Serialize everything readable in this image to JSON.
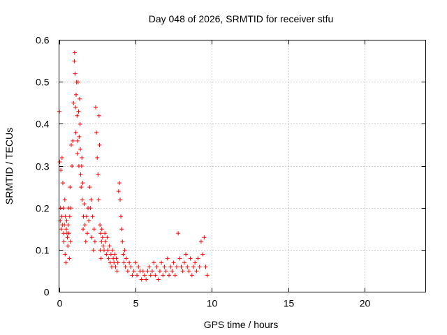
{
  "chart_data": {
    "type": "scatter",
    "title": "Day 048 of 2026, SRMTID for receiver stfu",
    "xlabel": "GPS time / hours",
    "ylabel": "SRMTID / TECUs",
    "xlim": [
      0,
      24
    ],
    "ylim": [
      0,
      0.6
    ],
    "x_ticks": [
      0,
      5,
      10,
      15,
      20
    ],
    "x_tick_labels": [
      "0",
      "5",
      "10",
      "15",
      "20"
    ],
    "y_ticks": [
      0,
      0.1,
      0.2,
      0.3,
      0.4,
      0.5,
      0.6
    ],
    "y_tick_labels": [
      "0",
      "0.1",
      "0.2",
      "0.3",
      "0.4",
      "0.5",
      "0.6"
    ],
    "grid": true,
    "marker": "+",
    "series": [
      {
        "name": "SRMTID",
        "color": "#ff0000",
        "x": [
          0.02,
          0.05,
          0.08,
          0.1,
          0.12,
          0.15,
          0.18,
          0.2,
          0.22,
          0.25,
          0.28,
          0.3,
          0.32,
          0.35,
          0.38,
          0.4,
          0.42,
          0.45,
          0.48,
          0.5,
          0.52,
          0.55,
          0.58,
          0.6,
          0.62,
          0.65,
          0.68,
          0.7,
          0.72,
          0.75,
          0.78,
          0.8,
          0.85,
          0.9,
          0.95,
          1.0,
          1.02,
          1.05,
          1.08,
          1.1,
          1.12,
          1.15,
          1.18,
          1.2,
          1.22,
          1.25,
          1.28,
          1.3,
          1.32,
          1.35,
          1.38,
          1.4,
          1.42,
          1.45,
          1.48,
          1.5,
          1.52,
          1.55,
          1.58,
          1.6,
          1.65,
          1.7,
          1.75,
          1.8,
          1.85,
          1.9,
          1.95,
          2.0,
          2.05,
          2.1,
          2.15,
          2.2,
          2.25,
          2.3,
          2.35,
          2.4,
          2.45,
          2.5,
          2.55,
          2.6,
          2.62,
          2.65,
          2.68,
          2.7,
          2.72,
          2.75,
          2.78,
          2.8,
          2.85,
          2.9,
          2.95,
          3.0,
          3.05,
          3.1,
          3.15,
          3.2,
          3.25,
          3.3,
          3.35,
          3.4,
          3.45,
          3.5,
          3.55,
          3.6,
          3.65,
          3.7,
          3.75,
          3.8,
          3.85,
          3.9,
          3.95,
          4.0,
          4.05,
          4.1,
          4.15,
          4.2,
          4.25,
          4.3,
          4.35,
          4.4,
          4.5,
          4.6,
          4.7,
          4.8,
          4.9,
          5.0,
          5.1,
          5.2,
          5.3,
          5.4,
          5.5,
          5.6,
          5.7,
          5.8,
          5.9,
          6.0,
          6.1,
          6.2,
          6.3,
          6.4,
          6.5,
          6.6,
          6.7,
          6.8,
          6.9,
          7.0,
          7.1,
          7.2,
          7.3,
          7.4,
          7.5,
          7.6,
          7.7,
          7.8,
          7.9,
          8.0,
          8.1,
          8.2,
          8.3,
          8.4,
          8.5,
          8.6,
          8.7,
          8.8,
          8.9,
          9.0,
          9.1,
          9.2,
          9.3,
          9.4,
          9.5,
          9.6,
          9.7
        ],
        "y": [
          0.43,
          0.31,
          0.17,
          0.2,
          0.29,
          0.15,
          0.18,
          0.32,
          0.16,
          0.26,
          0.2,
          0.14,
          0.12,
          0.16,
          0.22,
          0.09,
          0.18,
          0.07,
          0.15,
          0.17,
          0.14,
          0.13,
          0.11,
          0.16,
          0.2,
          0.14,
          0.08,
          0.18,
          0.25,
          0.12,
          0.2,
          0.35,
          0.3,
          0.36,
          0.45,
          0.55,
          0.57,
          0.52,
          0.44,
          0.38,
          0.47,
          0.5,
          0.42,
          0.33,
          0.36,
          0.5,
          0.43,
          0.3,
          0.37,
          0.46,
          0.4,
          0.34,
          0.28,
          0.25,
          0.3,
          0.32,
          0.22,
          0.26,
          0.15,
          0.18,
          0.21,
          0.16,
          0.12,
          0.18,
          0.14,
          0.2,
          0.17,
          0.25,
          0.2,
          0.22,
          0.13,
          0.18,
          0.1,
          0.15,
          0.12,
          0.44,
          0.38,
          0.32,
          0.28,
          0.22,
          0.42,
          0.35,
          0.16,
          0.1,
          0.14,
          0.08,
          0.12,
          0.15,
          0.13,
          0.11,
          0.1,
          0.14,
          0.12,
          0.09,
          0.13,
          0.1,
          0.08,
          0.11,
          0.07,
          0.09,
          0.06,
          0.1,
          0.08,
          0.07,
          0.09,
          0.06,
          0.08,
          0.05,
          0.07,
          0.24,
          0.26,
          0.22,
          0.18,
          0.15,
          0.12,
          0.09,
          0.07,
          0.1,
          0.06,
          0.08,
          0.05,
          0.07,
          0.06,
          0.04,
          0.05,
          0.07,
          0.04,
          0.06,
          0.05,
          0.03,
          0.05,
          0.04,
          0.03,
          0.05,
          0.06,
          0.04,
          0.05,
          0.07,
          0.04,
          0.06,
          0.03,
          0.05,
          0.07,
          0.04,
          0.06,
          0.05,
          0.08,
          0.04,
          0.06,
          0.05,
          0.07,
          0.04,
          0.06,
          0.14,
          0.08,
          0.06,
          0.05,
          0.07,
          0.09,
          0.06,
          0.05,
          0.08,
          0.04,
          0.06,
          0.07,
          0.05,
          0.08,
          0.06,
          0.12,
          0.09,
          0.13,
          0.06,
          0.04
        ]
      }
    ]
  }
}
